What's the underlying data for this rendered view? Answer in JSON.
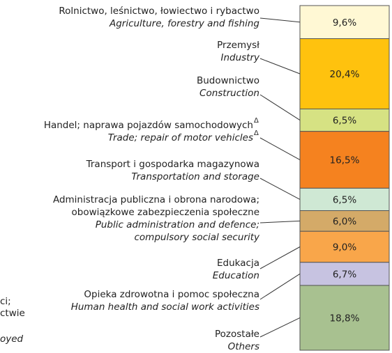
{
  "chart_data": {
    "type": "stacked-column",
    "labels": [
      {
        "pl": [
          "Rolnictwo, leśnictwo, łowiectwo i rybactwo"
        ],
        "en": [
          "Agriculture, forestry and fishing"
        ]
      },
      {
        "pl": [
          "Przemysł"
        ],
        "en": [
          "Industry"
        ]
      },
      {
        "pl": [
          "Budownictwo"
        ],
        "en": [
          "Construction"
        ]
      },
      {
        "pl": [
          "Handel; naprawa pojazdów samochodowych"
        ],
        "en": [
          "Trade; repair of motor vehicles"
        ],
        "mark": "Δ"
      },
      {
        "pl": [
          "Transport i gospodarka magazynowa"
        ],
        "en": [
          "Transportation and storage"
        ]
      },
      {
        "pl": [
          "Administracja publiczna i obrona narodowa;",
          "obowiązkowe zabezpieczenia społeczne"
        ],
        "en": [
          "Public administration and defence;",
          "compulsory social security"
        ]
      },
      {
        "pl": [
          "Edukacja"
        ],
        "en": [
          "Education"
        ]
      },
      {
        "pl": [
          "Opieka zdrowotna i pomoc społeczna"
        ],
        "en": [
          "Human health and social work activities"
        ]
      },
      {
        "pl": [
          "Pozostałe"
        ],
        "en": [
          "Others"
        ]
      }
    ],
    "values": [
      9.6,
      20.4,
      6.5,
      16.5,
      6.5,
      6.0,
      9.0,
      6.7,
      18.8
    ],
    "value_labels": [
      "9,6%",
      "20,4%",
      "6,5%",
      "16,5%",
      "6,5%",
      "6,0%",
      "9,0%",
      "6,7%",
      "18,8%"
    ],
    "colors": [
      "#fff8d4",
      "#ffc20e",
      "#d6e283",
      "#f5821f",
      "#cfe8d4",
      "#d4aa68",
      "#f9a64a",
      "#c7c3e1",
      "#a8c190"
    ],
    "ylim": [
      0,
      100
    ],
    "fragments": [
      "ci;",
      "ctwie",
      "oyed"
    ]
  }
}
